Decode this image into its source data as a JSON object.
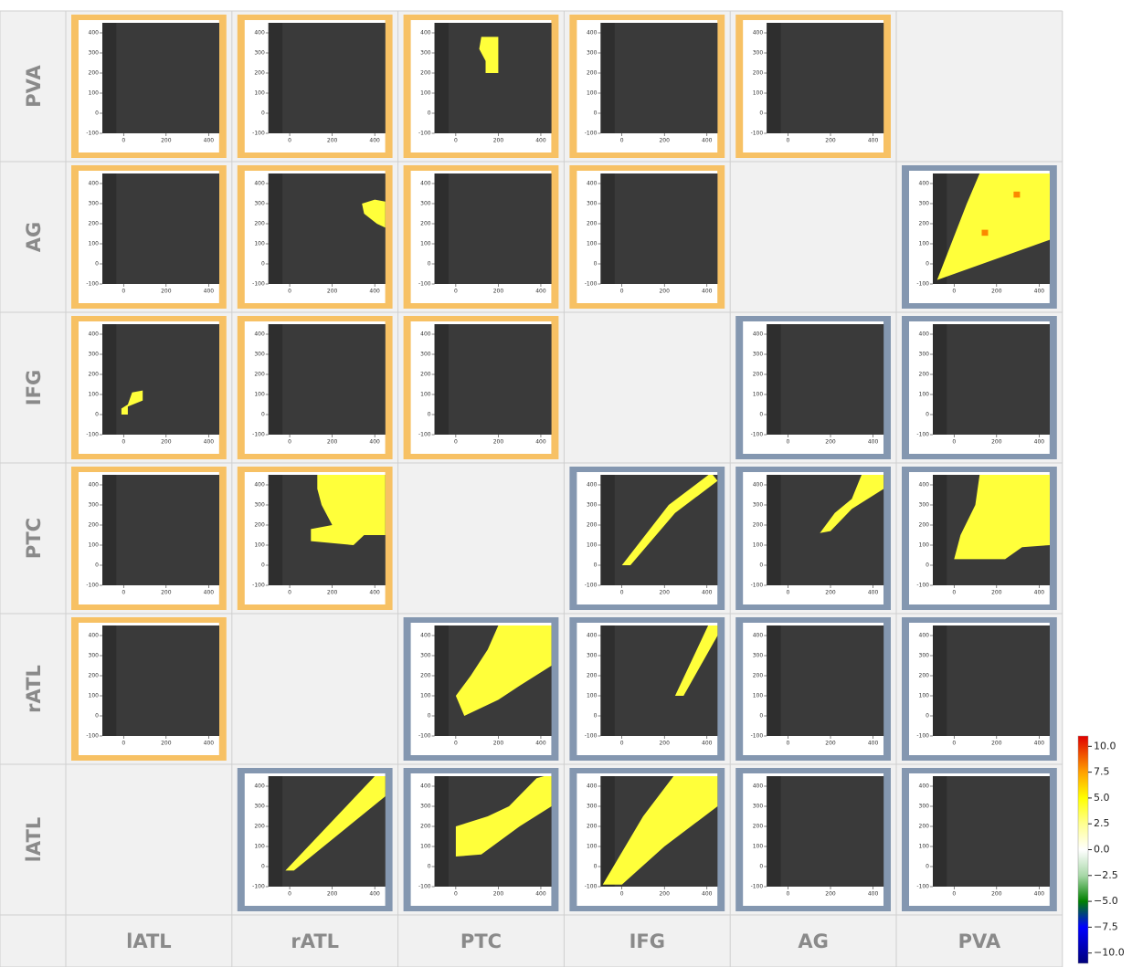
{
  "chart_data": {
    "type": "heatmap-matrix",
    "rows": [
      "PVA",
      "AG",
      "IFG",
      "PTC",
      "rATL",
      "lATL"
    ],
    "columns": [
      "lATL",
      "rATL",
      "PTC",
      "IFG",
      "AG",
      "PVA"
    ],
    "xlim": [
      -100,
      450
    ],
    "ylim": [
      -100,
      450
    ],
    "xticks": [
      0,
      200,
      400
    ],
    "yticks": [
      -100,
      0,
      100,
      200,
      300,
      400
    ],
    "panels": [
      {
        "row": 0,
        "col": 0,
        "frame_color": "#f7c164",
        "regions": []
      },
      {
        "row": 0,
        "col": 1,
        "frame_color": "#f7c164",
        "regions": []
      },
      {
        "row": 0,
        "col": 2,
        "frame_color": "#f7c164",
        "regions": [
          {
            "value": 4,
            "points": [
              [
                120,
                380
              ],
              [
                200,
                380
              ],
              [
                200,
                200
              ],
              [
                140,
                200
              ],
              [
                140,
                260
              ],
              [
                110,
                320
              ]
            ]
          }
        ]
      },
      {
        "row": 0,
        "col": 3,
        "frame_color": "#f7c164",
        "regions": []
      },
      {
        "row": 0,
        "col": 4,
        "frame_color": "#f7c164",
        "regions": []
      },
      {
        "row": 1,
        "col": 0,
        "frame_color": "#f7c164",
        "regions": []
      },
      {
        "row": 1,
        "col": 1,
        "frame_color": "#f7c164",
        "regions": [
          {
            "value": 4,
            "points": [
              [
                340,
                300
              ],
              [
                400,
                320
              ],
              [
                450,
                310
              ],
              [
                450,
                180
              ],
              [
                410,
                200
              ],
              [
                350,
                250
              ]
            ]
          }
        ]
      },
      {
        "row": 1,
        "col": 2,
        "frame_color": "#f7c164",
        "regions": []
      },
      {
        "row": 1,
        "col": 3,
        "frame_color": "#f7c164",
        "regions": []
      },
      {
        "row": 1,
        "col": 5,
        "frame_color": "#8497b0",
        "regions": [
          {
            "value": 4,
            "points": [
              [
                -80,
                -80
              ],
              [
                450,
                120
              ],
              [
                450,
                450
              ],
              [
                120,
                450
              ],
              [
                60,
                300
              ]
            ]
          },
          {
            "value": 8,
            "points": [
              [
                130,
                140
              ],
              [
                160,
                140
              ],
              [
                160,
                170
              ],
              [
                130,
                170
              ]
            ]
          },
          {
            "value": 8,
            "points": [
              [
                280,
                330
              ],
              [
                310,
                330
              ],
              [
                310,
                360
              ],
              [
                280,
                360
              ]
            ]
          }
        ]
      },
      {
        "row": 2,
        "col": 0,
        "frame_color": "#f7c164",
        "regions": [
          {
            "value": 4,
            "points": [
              [
                -10,
                0
              ],
              [
                20,
                0
              ],
              [
                20,
                40
              ],
              [
                90,
                70
              ],
              [
                90,
                120
              ],
              [
                40,
                110
              ],
              [
                20,
                50
              ],
              [
                -10,
                30
              ]
            ]
          }
        ]
      },
      {
        "row": 2,
        "col": 1,
        "frame_color": "#f7c164",
        "regions": []
      },
      {
        "row": 2,
        "col": 2,
        "frame_color": "#f7c164",
        "regions": []
      },
      {
        "row": 2,
        "col": 4,
        "frame_color": "#8497b0",
        "regions": []
      },
      {
        "row": 2,
        "col": 5,
        "frame_color": "#8497b0",
        "regions": []
      },
      {
        "row": 3,
        "col": 0,
        "frame_color": "#f7c164",
        "regions": []
      },
      {
        "row": 3,
        "col": 1,
        "frame_color": "#f7c164",
        "regions": [
          {
            "value": 4,
            "points": [
              [
                130,
                450
              ],
              [
                450,
                450
              ],
              [
                450,
                150
              ],
              [
                350,
                150
              ],
              [
                300,
                100
              ],
              [
                100,
                120
              ],
              [
                100,
                180
              ],
              [
                200,
                200
              ],
              [
                150,
                300
              ],
              [
                130,
                380
              ]
            ]
          }
        ]
      },
      {
        "row": 3,
        "col": 3,
        "frame_color": "#8497b0",
        "regions": [
          {
            "value": 4,
            "points": [
              [
                0,
                0
              ],
              [
                40,
                0
              ],
              [
                250,
                260
              ],
              [
                450,
                420
              ],
              [
                420,
                460
              ],
              [
                220,
                300
              ]
            ]
          }
        ]
      },
      {
        "row": 3,
        "col": 4,
        "frame_color": "#8497b0",
        "regions": [
          {
            "value": 4,
            "points": [
              [
                150,
                160
              ],
              [
                200,
                170
              ],
              [
                300,
                280
              ],
              [
                450,
                380
              ],
              [
                450,
                460
              ],
              [
                350,
                460
              ],
              [
                300,
                330
              ],
              [
                220,
                260
              ]
            ]
          }
        ]
      },
      {
        "row": 3,
        "col": 5,
        "frame_color": "#8497b0",
        "regions": [
          {
            "value": 4,
            "points": [
              [
                120,
                450
              ],
              [
                450,
                450
              ],
              [
                450,
                100
              ],
              [
                320,
                90
              ],
              [
                240,
                30
              ],
              [
                0,
                30
              ],
              [
                30,
                150
              ],
              [
                100,
                300
              ]
            ]
          }
        ]
      },
      {
        "row": 4,
        "col": 0,
        "frame_color": "#f7c164",
        "regions": []
      },
      {
        "row": 4,
        "col": 2,
        "frame_color": "#8497b0",
        "regions": [
          {
            "value": 4,
            "points": [
              [
                40,
                0
              ],
              [
                200,
                80
              ],
              [
                300,
                150
              ],
              [
                450,
                250
              ],
              [
                450,
                450
              ],
              [
                200,
                450
              ],
              [
                150,
                330
              ],
              [
                70,
                200
              ],
              [
                0,
                100
              ]
            ]
          }
        ]
      },
      {
        "row": 4,
        "col": 3,
        "frame_color": "#8497b0",
        "regions": [
          {
            "value": 4,
            "points": [
              [
                250,
                100
              ],
              [
                290,
                100
              ],
              [
                450,
                400
              ],
              [
                450,
                460
              ],
              [
                410,
                460
              ]
            ]
          }
        ]
      },
      {
        "row": 4,
        "col": 4,
        "frame_color": "#8497b0",
        "regions": []
      },
      {
        "row": 4,
        "col": 5,
        "frame_color": "#8497b0",
        "regions": []
      },
      {
        "row": 5,
        "col": 1,
        "frame_color": "#8497b0",
        "regions": [
          {
            "value": 4,
            "points": [
              [
                -20,
                -20
              ],
              [
                20,
                -20
              ],
              [
                450,
                350
              ],
              [
                450,
                450
              ],
              [
                400,
                450
              ]
            ]
          }
        ]
      },
      {
        "row": 5,
        "col": 2,
        "frame_color": "#8497b0",
        "regions": [
          {
            "value": 4,
            "points": [
              [
                0,
                50
              ],
              [
                120,
                60
              ],
              [
                300,
                200
              ],
              [
                450,
                300
              ],
              [
                450,
                460
              ],
              [
                380,
                440
              ],
              [
                250,
                300
              ],
              [
                150,
                250
              ],
              [
                0,
                200
              ]
            ]
          }
        ]
      },
      {
        "row": 5,
        "col": 3,
        "frame_color": "#8497b0",
        "regions": [
          {
            "value": 4,
            "points": [
              [
                -90,
                -90
              ],
              [
                0,
                -90
              ],
              [
                200,
                100
              ],
              [
                450,
                300
              ],
              [
                450,
                460
              ],
              [
                250,
                460
              ],
              [
                100,
                250
              ]
            ]
          }
        ]
      },
      {
        "row": 5,
        "col": 4,
        "frame_color": "#8497b0",
        "regions": []
      },
      {
        "row": 5,
        "col": 5,
        "frame_color": "#8497b0",
        "regions": []
      }
    ],
    "colorbar": {
      "clim": [
        -11,
        11
      ],
      "ticks": [
        {
          "value": 10,
          "label": "10.0"
        },
        {
          "value": 7.5,
          "label": "7.5"
        },
        {
          "value": 5,
          "label": "5.0"
        },
        {
          "value": 2.5,
          "label": "2.5"
        },
        {
          "value": 0,
          "label": "0.0"
        },
        {
          "value": -2.5,
          "label": "−2.5"
        },
        {
          "value": -5,
          "label": "−5.0"
        },
        {
          "value": -7.5,
          "label": "−7.5"
        },
        {
          "value": -10,
          "label": "−10.0"
        }
      ],
      "colormap": [
        {
          "value": -11,
          "color": "#00007a"
        },
        {
          "value": -7.5,
          "color": "#0000ff"
        },
        {
          "value": -5,
          "color": "#008000"
        },
        {
          "value": -2.5,
          "color": "#a8d8a8"
        },
        {
          "value": 0,
          "color": "#ffffff"
        },
        {
          "value": 2.5,
          "color": "#ffff90"
        },
        {
          "value": 5,
          "color": "#ffff00"
        },
        {
          "value": 7.5,
          "color": "#ffa000"
        },
        {
          "value": 11,
          "color": "#e00000"
        }
      ]
    }
  }
}
